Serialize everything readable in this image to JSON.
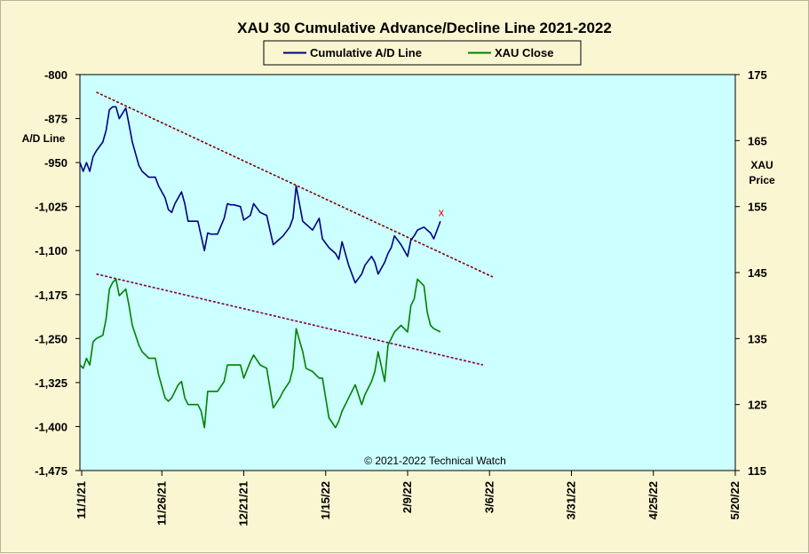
{
  "chart_data": {
    "type": "line",
    "title": "XAU 30 Cumulative Advance/Decline Line 2021-2022",
    "ylabel": "A/D Line",
    "ylabel_right": "XAU Price",
    "copyright": "© 2021-2022  Technical  Watch",
    "x_ticks": [
      "11/1/21",
      "11/26/21",
      "12/21/21",
      "1/15/22",
      "2/9/22",
      "3/6/22",
      "3/31/22",
      "4/25/22",
      "5/20/22"
    ],
    "x_start": "2021-11-01",
    "x_end": "2022-05-20",
    "ylim": [
      -1475,
      -800
    ],
    "y_ticks": [
      -800,
      -875,
      -950,
      -1025,
      -1100,
      -1175,
      -1250,
      -1325,
      -1400,
      -1475
    ],
    "y_tick_labels": [
      "-800",
      "-875",
      "-950",
      "-1,025",
      "-1,100",
      "-1,175",
      "-1,250",
      "-1,325",
      "-1,400",
      "-1,475"
    ],
    "ylim_right": [
      115,
      175
    ],
    "y_ticks_right": [
      175,
      165,
      155,
      145,
      135,
      125,
      115
    ],
    "legend": {
      "placement": "top-center",
      "background": "#fbf6d2"
    },
    "plot_background": "#ccffff",
    "series": [
      {
        "name": "Cumulative A/D Line",
        "axis": "left",
        "color": "#000080",
        "x": [
          "2021-11-01",
          "2021-11-02",
          "2021-11-03",
          "2021-11-04",
          "2021-11-05",
          "2021-11-06",
          "2021-11-08",
          "2021-11-09",
          "2021-11-10",
          "2021-11-11",
          "2021-11-12",
          "2021-11-13",
          "2021-11-15",
          "2021-11-16",
          "2021-11-17",
          "2021-11-18",
          "2021-11-19",
          "2021-11-20",
          "2021-11-22",
          "2021-11-23",
          "2021-11-24",
          "2021-11-25",
          "2021-11-27",
          "2021-11-28",
          "2021-11-29",
          "2021-11-30",
          "2021-12-01",
          "2021-12-02",
          "2021-12-03",
          "2021-12-04",
          "2021-12-06",
          "2021-12-07",
          "2021-12-08",
          "2021-12-09",
          "2021-12-10",
          "2021-12-11",
          "2021-12-13",
          "2021-12-15",
          "2021-12-16",
          "2021-12-17",
          "2021-12-18",
          "2021-12-20",
          "2021-12-21",
          "2021-12-23",
          "2021-12-24",
          "2021-12-26",
          "2021-12-28",
          "2021-12-30",
          "2022-01-01",
          "2022-01-02",
          "2022-01-04",
          "2022-01-05",
          "2022-01-06",
          "2022-01-08",
          "2022-01-09",
          "2022-01-11",
          "2022-01-13",
          "2022-01-14",
          "2022-01-16",
          "2022-01-18",
          "2022-01-19",
          "2022-01-20",
          "2022-01-22",
          "2022-01-24",
          "2022-01-26",
          "2022-01-27",
          "2022-01-29",
          "2022-01-30",
          "2022-01-31",
          "2022-02-02",
          "2022-02-03",
          "2022-02-04",
          "2022-02-05",
          "2022-02-07",
          "2022-02-09",
          "2022-02-10",
          "2022-02-11",
          "2022-02-12",
          "2022-02-14",
          "2022-02-15",
          "2022-02-16",
          "2022-02-17",
          "2022-02-19"
        ],
        "values": [
          -950,
          -965,
          -950,
          -965,
          -940,
          -930,
          -915,
          -895,
          -860,
          -855,
          -855,
          -875,
          -857,
          -885,
          -915,
          -935,
          -955,
          -965,
          -975,
          -975,
          -975,
          -990,
          -1010,
          -1030,
          -1035,
          -1020,
          -1010,
          -1000,
          -1020,
          -1050,
          -1050,
          -1050,
          -1075,
          -1100,
          -1070,
          -1072,
          -1072,
          -1045,
          -1020,
          -1022,
          -1022,
          -1025,
          -1048,
          -1040,
          -1020,
          -1035,
          -1040,
          -1090,
          -1080,
          -1075,
          -1060,
          -1045,
          -990,
          -1050,
          -1055,
          -1065,
          -1045,
          -1080,
          -1095,
          -1105,
          -1115,
          -1085,
          -1125,
          -1155,
          -1140,
          -1125,
          -1110,
          -1120,
          -1140,
          -1120,
          -1105,
          -1095,
          -1075,
          -1090,
          -1110,
          -1082,
          -1075,
          -1065,
          -1060,
          -1065,
          -1070,
          -1080,
          -1050
        ]
      },
      {
        "name": "XAU Close",
        "axis": "right",
        "color": "#008000",
        "x": [
          "2021-11-01",
          "2021-11-02",
          "2021-11-03",
          "2021-11-04",
          "2021-11-05",
          "2021-11-06",
          "2021-11-08",
          "2021-11-09",
          "2021-11-10",
          "2021-11-11",
          "2021-11-12",
          "2021-11-13",
          "2021-11-15",
          "2021-11-16",
          "2021-11-17",
          "2021-11-18",
          "2021-11-19",
          "2021-11-20",
          "2021-11-22",
          "2021-11-23",
          "2021-11-24",
          "2021-11-25",
          "2021-11-27",
          "2021-11-28",
          "2021-11-29",
          "2021-11-30",
          "2021-12-01",
          "2021-12-02",
          "2021-12-03",
          "2021-12-04",
          "2021-12-06",
          "2021-12-07",
          "2021-12-08",
          "2021-12-09",
          "2021-12-10",
          "2021-12-11",
          "2021-12-13",
          "2021-12-15",
          "2021-12-16",
          "2021-12-17",
          "2021-12-18",
          "2021-12-20",
          "2021-12-21",
          "2021-12-23",
          "2021-12-24",
          "2021-12-26",
          "2021-12-28",
          "2021-12-30",
          "2022-01-01",
          "2022-01-02",
          "2022-01-04",
          "2022-01-05",
          "2022-01-06",
          "2022-01-08",
          "2022-01-09",
          "2022-01-11",
          "2022-01-13",
          "2022-01-14",
          "2022-01-16",
          "2022-01-18",
          "2022-01-19",
          "2022-01-20",
          "2022-01-22",
          "2022-01-24",
          "2022-01-26",
          "2022-01-27",
          "2022-01-29",
          "2022-01-30",
          "2022-01-31",
          "2022-02-02",
          "2022-02-03",
          "2022-02-04",
          "2022-02-05",
          "2022-02-07",
          "2022-02-09",
          "2022-02-10",
          "2022-02-11",
          "2022-02-12",
          "2022-02-14",
          "2022-02-15",
          "2022-02-16",
          "2022-02-17",
          "2022-02-19"
        ],
        "values": [
          131,
          130.5,
          132,
          131,
          134.5,
          135,
          135.5,
          138,
          142.5,
          143.5,
          144,
          141.5,
          142.5,
          140,
          137,
          135.5,
          134,
          133,
          132,
          132,
          132,
          129.5,
          126,
          125.5,
          126,
          127,
          128,
          128.5,
          126,
          125,
          125,
          125,
          124,
          121.5,
          127,
          127,
          127,
          128.5,
          131,
          131,
          131,
          131,
          129,
          131.5,
          132.5,
          131,
          130.5,
          124.5,
          126,
          127,
          128.5,
          130.5,
          136.5,
          133,
          130.5,
          130,
          129,
          129,
          123,
          121.5,
          122.5,
          124,
          126,
          128,
          125,
          126.5,
          128.5,
          130,
          133,
          128.5,
          134,
          135,
          136,
          137,
          136,
          140,
          141,
          144,
          143,
          139,
          137,
          136.5,
          136
        ]
      }
    ],
    "trendlines": [
      {
        "axis": "left",
        "color": "#800000",
        "style": "dashed",
        "from": [
          "2021-11-06",
          -830
        ],
        "to": [
          "2022-03-07",
          -1145
        ]
      },
      {
        "axis": "left",
        "color": "#800040",
        "style": "dashed",
        "from": [
          "2021-11-06",
          -1140
        ],
        "to": [
          "2022-03-04",
          -1295
        ]
      }
    ],
    "marker": {
      "label": "x",
      "axis": "left",
      "color": "#ff0000",
      "x": "2022-02-19",
      "y": -1035
    }
  }
}
